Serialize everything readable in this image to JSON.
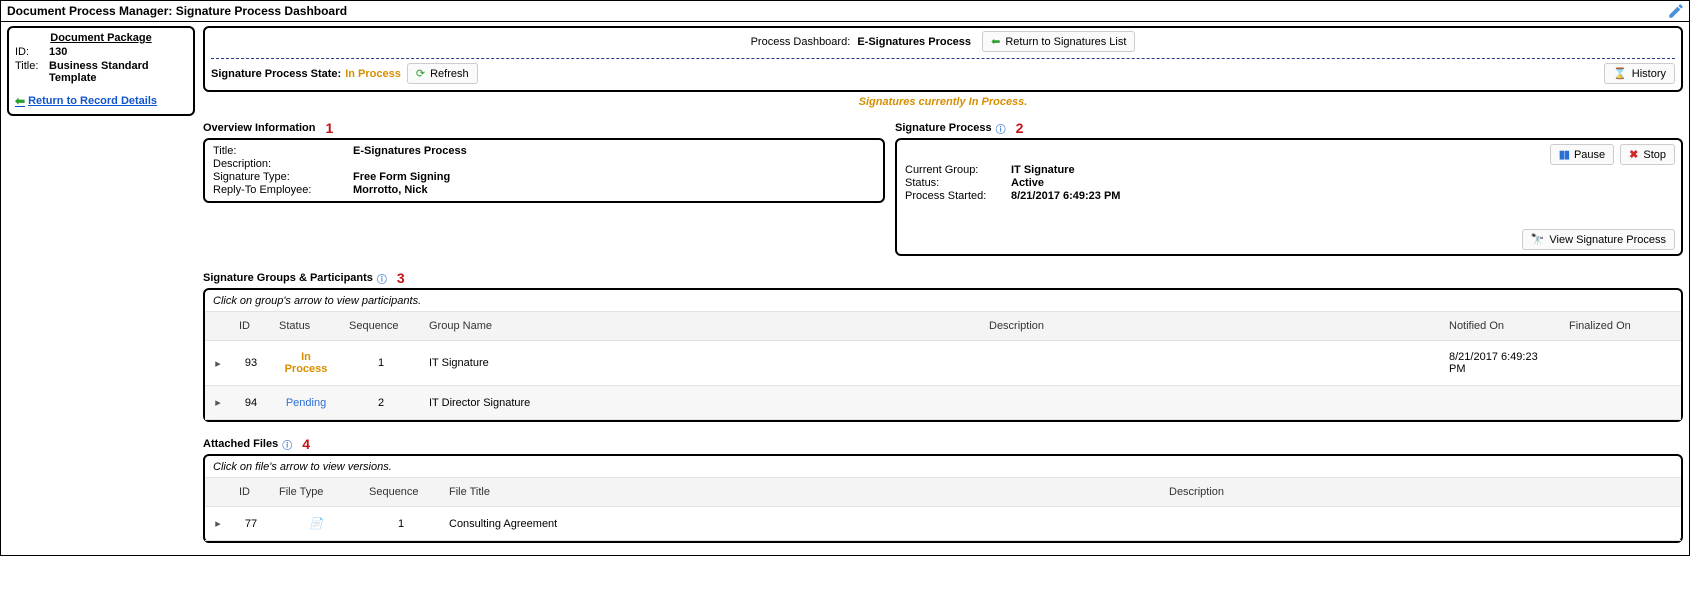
{
  "titlebar": {
    "text": "Document Process Manager: Signature Process Dashboard",
    "edit_icon": "edit"
  },
  "sidebar": {
    "heading": "Document Package",
    "id_label": "ID:",
    "id_value": "130",
    "title_label": "Title:",
    "title_value": "Business Standard Template",
    "return_link": "Return to Record Details"
  },
  "dashboard": {
    "process_label": "Process Dashboard:",
    "process_value": "E-Signatures Process",
    "btn_return_sig_list": "Return to Signatures List",
    "state_label": "Signature Process State:",
    "state_value": "In Process",
    "btn_refresh": "Refresh",
    "btn_history": "History",
    "in_process_msg": "Signatures currently In Process."
  },
  "overview": {
    "section_label": "Overview Information",
    "annot": "1",
    "title_k": "Title:",
    "title_v": "E-Signatures Process",
    "desc_k": "Description:",
    "desc_v": "",
    "sigtype_k": "Signature Type:",
    "sigtype_v": "Free Form Signing",
    "reply_k": "Reply-To Employee:",
    "reply_v": "Morrotto, Nick"
  },
  "sigprocess": {
    "section_label": "Signature Process",
    "annot": "2",
    "btn_pause": "Pause",
    "btn_stop": "Stop",
    "btn_view": "View Signature Process",
    "group_k": "Current Group:",
    "group_v": "IT Signature",
    "status_k": "Status:",
    "status_v": "Active",
    "started_k": "Process Started:",
    "started_v": "8/21/2017 6:49:23 PM"
  },
  "groups": {
    "section_label": "Signature Groups & Participants",
    "annot": "3",
    "hint": "Click on group's arrow to view participants.",
    "columns": {
      "id": "ID",
      "status": "Status",
      "seq": "Sequence",
      "name": "Group Name",
      "desc": "Description",
      "notified": "Notified On",
      "finalized": "Finalized On"
    },
    "rows": [
      {
        "id": "93",
        "status": "In Process",
        "status_class": "inprocess",
        "seq": "1",
        "name": "IT Signature",
        "desc": "",
        "notified": "8/21/2017 6:49:23 PM",
        "finalized": ""
      },
      {
        "id": "94",
        "status": "Pending",
        "status_class": "pending",
        "seq": "2",
        "name": "IT Director Signature",
        "desc": "",
        "notified": "",
        "finalized": ""
      }
    ]
  },
  "files": {
    "section_label": "Attached Files",
    "annot": "4",
    "hint": "Click on file's arrow to view versions.",
    "columns": {
      "id": "ID",
      "type": "File Type",
      "seq": "Sequence",
      "title": "File Title",
      "desc": "Description"
    },
    "rows": [
      {
        "id": "77",
        "type_icon": "pdf",
        "seq": "1",
        "title": "Consulting Agreement",
        "desc": ""
      }
    ]
  },
  "colors": {
    "accent_orange": "#d68f00",
    "link_blue": "#1155cc",
    "danger_red": "#c41216"
  }
}
